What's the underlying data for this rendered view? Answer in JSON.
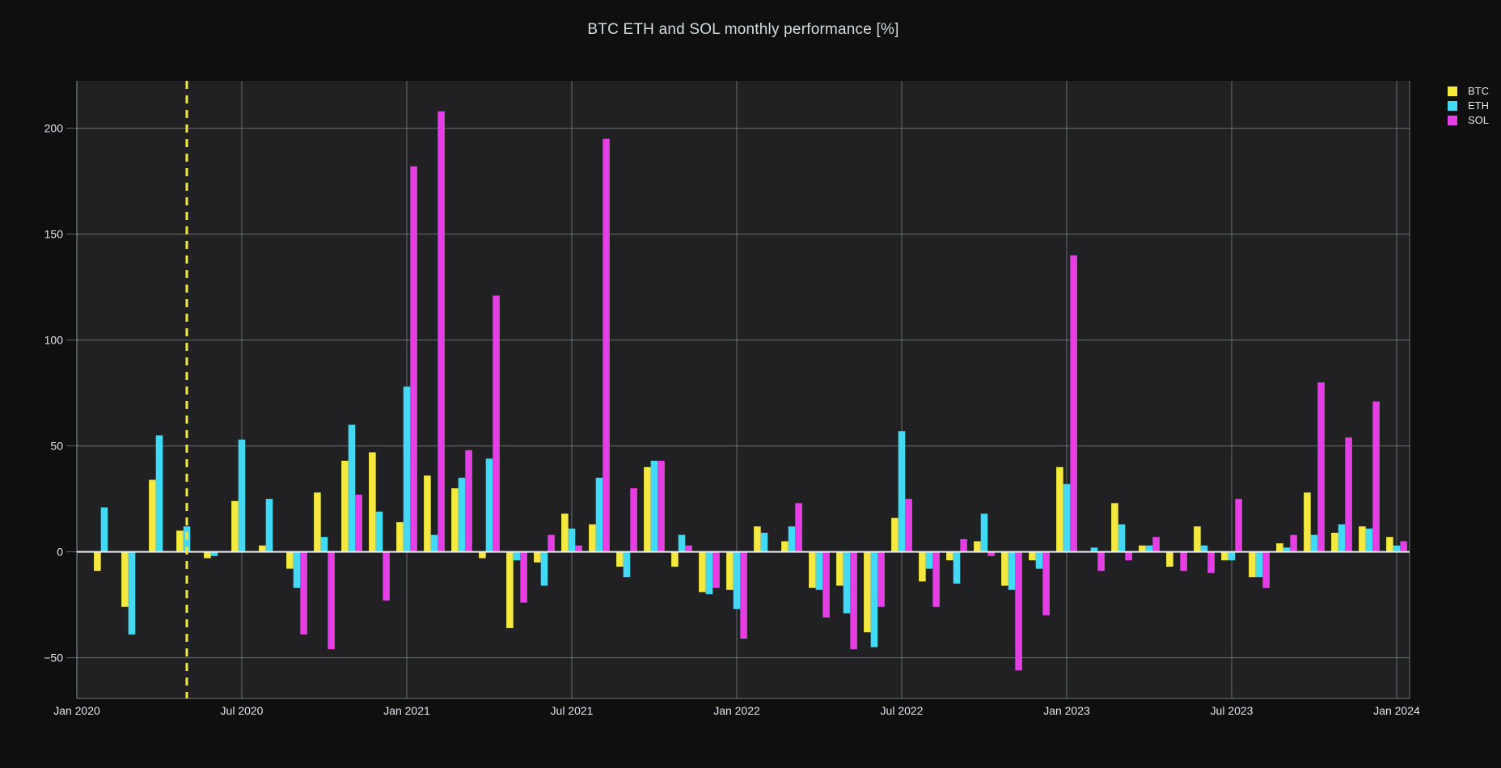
{
  "title": "BTC ETH and SOL monthly performance [%]",
  "legend": {
    "items": [
      {
        "label": "BTC",
        "color": "#f5e93f"
      },
      {
        "label": "ETH",
        "color": "#42d9f5"
      },
      {
        "label": "SOL",
        "color": "#e43ee4"
      }
    ],
    "position": "top-right"
  },
  "colors": {
    "btc": "#f5e93f",
    "eth": "#42d9f5",
    "sol": "#e43ee4",
    "background": "#0f0f10",
    "plot_background": "#212123",
    "grid": "#a6bdc2",
    "zero_line": "#e9eef0",
    "text": "#dfe7ea",
    "title_text": "#d2dcdf",
    "halving_line": "#f5e93f"
  },
  "annotations": {
    "halving_line": {
      "month": "May 2020",
      "style": "dashed-vertical",
      "color": "#f5e93f"
    }
  },
  "chart_data": {
    "type": "bar",
    "title": "BTC ETH and SOL monthly performance [%]",
    "xlabel": "",
    "ylabel": "",
    "grid": true,
    "legend_position": "top-right",
    "background": "dark",
    "ylim": [
      -69,
      223
    ],
    "y_ticks": [
      200,
      150,
      100,
      50,
      0,
      -50
    ],
    "y_tick_labels": [
      "200",
      "150",
      "100",
      "50",
      "0",
      "−50"
    ],
    "x_tick_labels": [
      "Jan 2020",
      "Jul 2020",
      "Jan 2021",
      "Jul 2021",
      "Jan 2022",
      "Jul 2022",
      "Jan 2023",
      "Jul 2023",
      "Jan 2024"
    ],
    "categories": [
      "Jan 2020",
      "Feb 2020",
      "Mar 2020",
      "Apr 2020",
      "May 2020",
      "Jun 2020",
      "Jul 2020",
      "Aug 2020",
      "Sep 2020",
      "Oct 2020",
      "Nov 2020",
      "Dec 2020",
      "Jan 2021",
      "Feb 2021",
      "Mar 2021",
      "Apr 2021",
      "May 2021",
      "Jun 2021",
      "Jul 2021",
      "Aug 2021",
      "Sep 2021",
      "Oct 2021",
      "Nov 2021",
      "Dec 2021",
      "Jan 2022",
      "Feb 2022",
      "Mar 2022",
      "Apr 2022",
      "May 2022",
      "Jun 2022",
      "Jul 2022",
      "Aug 2022",
      "Sep 2022",
      "Oct 2022",
      "Nov 2022",
      "Dec 2022",
      "Jan 2023",
      "Feb 2023",
      "Mar 2023",
      "Apr 2023",
      "May 2023",
      "Jun 2023",
      "Jul 2023",
      "Aug 2023",
      "Sep 2023",
      "Oct 2023",
      "Nov 2023",
      "Dec 2023",
      "Jan 2024"
    ],
    "series": [
      {
        "name": "BTC",
        "color": "#f5e93f",
        "values": [
          null,
          -9,
          -26,
          34,
          10,
          -3,
          24,
          3,
          -8,
          28,
          43,
          47,
          14,
          36,
          30,
          -3,
          -36,
          -5,
          18,
          13,
          -7,
          40,
          -7,
          -19,
          -18,
          12,
          5,
          -17,
          -16,
          -38,
          16,
          -14,
          -4,
          5,
          -16,
          -4,
          40,
          0,
          23,
          3,
          -7,
          12,
          -4,
          -12,
          4,
          28,
          9,
          12,
          7
        ]
      },
      {
        "name": "ETH",
        "color": "#42d9f5",
        "values": [
          null,
          21,
          -39,
          55,
          12,
          -2,
          53,
          25,
          -17,
          7,
          60,
          19,
          78,
          8,
          35,
          44,
          -4,
          -16,
          11,
          35,
          -12,
          43,
          8,
          -20,
          -27,
          9,
          12,
          -18,
          -29,
          -45,
          57,
          -8,
          -15,
          18,
          -18,
          -8,
          32,
          2,
          13,
          3,
          0,
          3,
          -4,
          -12,
          2,
          8,
          13,
          11,
          3
        ]
      },
      {
        "name": "SOL",
        "color": "#e43ee4",
        "values": [
          null,
          null,
          null,
          null,
          null,
          null,
          null,
          null,
          -39,
          -46,
          27,
          -23,
          182,
          208,
          48,
          121,
          -24,
          8,
          3,
          195,
          30,
          43,
          3,
          -17,
          -41,
          0,
          23,
          -31,
          -46,
          -26,
          25,
          -26,
          6,
          -2,
          -56,
          -30,
          140,
          -9,
          -4,
          7,
          -9,
          -10,
          25,
          -17,
          8,
          80,
          54,
          71,
          5
        ]
      }
    ],
    "vline": {
      "category": "May 2020",
      "style": "dashed",
      "color": "#f5e93f"
    }
  }
}
